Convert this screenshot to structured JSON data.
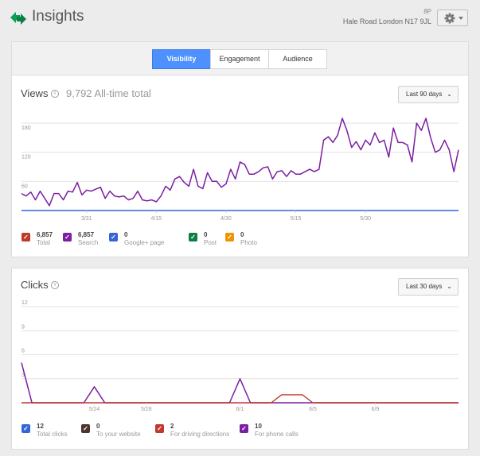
{
  "app": {
    "title": "Insights"
  },
  "business": {
    "id": "8P",
    "address": "Hale Road London N17 9JL"
  },
  "tabs": [
    {
      "label": "Visibility",
      "active": true
    },
    {
      "label": "Engagement",
      "active": false
    },
    {
      "label": "Audience",
      "active": false
    }
  ],
  "views": {
    "title": "Views",
    "total": "9,792 All-time total",
    "range": "Last 90 days",
    "legend": [
      {
        "value": "6,857",
        "label": "Total",
        "color": "#c0392b"
      },
      {
        "value": "6,857",
        "label": "Search",
        "color": "#7b1fa2"
      },
      {
        "value": "0",
        "label": "Google+ page",
        "color": "#3367d6"
      },
      {
        "value": "0",
        "label": "Post",
        "color": "#0b8043"
      },
      {
        "value": "0",
        "label": "Photo",
        "color": "#f09300"
      }
    ]
  },
  "clicks": {
    "title": "Clicks",
    "range": "Last 30 days",
    "legend": [
      {
        "value": "12",
        "label": "Total clicks",
        "color": "#3367d6"
      },
      {
        "value": "0",
        "label": "To your website",
        "color": "#4e342e"
      },
      {
        "value": "2",
        "label": "For driving directions",
        "color": "#c0392b"
      },
      {
        "value": "10",
        "label": "For phone calls",
        "color": "#7b1fa2"
      }
    ]
  },
  "chart_data": [
    {
      "type": "line",
      "title": "Views",
      "ylim": [
        0,
        180
      ],
      "yticks": [
        60,
        120,
        180
      ],
      "xtick_labels": [
        "3/31",
        "4/15",
        "4/30",
        "5/15",
        "5/30"
      ],
      "xtick_index": [
        14,
        29,
        44,
        59,
        74
      ],
      "series": [
        {
          "name": "Search",
          "color": "#7b1fa2",
          "values": [
            35,
            30,
            38,
            22,
            40,
            25,
            10,
            35,
            35,
            22,
            40,
            38,
            58,
            32,
            42,
            40,
            44,
            48,
            25,
            40,
            30,
            28,
            30,
            22,
            25,
            40,
            22,
            20,
            22,
            18,
            30,
            50,
            42,
            65,
            70,
            58,
            50,
            85,
            50,
            45,
            78,
            60,
            60,
            48,
            55,
            85,
            65,
            100,
            95,
            75,
            75,
            80,
            88,
            90,
            65,
            80,
            82,
            70,
            82,
            75,
            75,
            80,
            85,
            80,
            85,
            145,
            152,
            140,
            155,
            190,
            165,
            130,
            142,
            125,
            145,
            135,
            160,
            140,
            145,
            110,
            170,
            140,
            140,
            135,
            100,
            180,
            165,
            190,
            150,
            120,
            125,
            145,
            125,
            80,
            125
          ]
        },
        {
          "name": "Google+ page",
          "color": "#3367d6",
          "values": [
            0,
            0
          ]
        }
      ]
    },
    {
      "type": "line",
      "title": "Clicks",
      "ylim": [
        0,
        12
      ],
      "yticks": [
        3,
        6,
        9,
        12
      ],
      "xtick_labels": [
        "5/24",
        "5/28",
        "6/1",
        "6/5",
        "6/9"
      ],
      "xtick_index": [
        7,
        12,
        21,
        28,
        34
      ],
      "series": [
        {
          "name": "For phone calls",
          "color": "#7b1fa2",
          "values": [
            5,
            0,
            0,
            0,
            0,
            0,
            0,
            2,
            0,
            0,
            0,
            0,
            0,
            0,
            0,
            0,
            0,
            0,
            0,
            0,
            0,
            3,
            0,
            0,
            0,
            0,
            0,
            0,
            0,
            0,
            0,
            0,
            0,
            0,
            0,
            0,
            0,
            0,
            0,
            0,
            0,
            0,
            0
          ]
        },
        {
          "name": "For driving directions",
          "color": "#c0392b",
          "values": [
            0,
            0,
            0,
            0,
            0,
            0,
            0,
            0,
            0,
            0,
            0,
            0,
            0,
            0,
            0,
            0,
            0,
            0,
            0,
            0,
            0,
            0,
            0,
            0,
            0,
            1,
            1,
            1,
            0,
            0,
            0,
            0,
            0,
            0,
            0,
            0,
            0,
            0,
            0,
            0,
            0,
            0,
            0
          ]
        }
      ]
    }
  ]
}
